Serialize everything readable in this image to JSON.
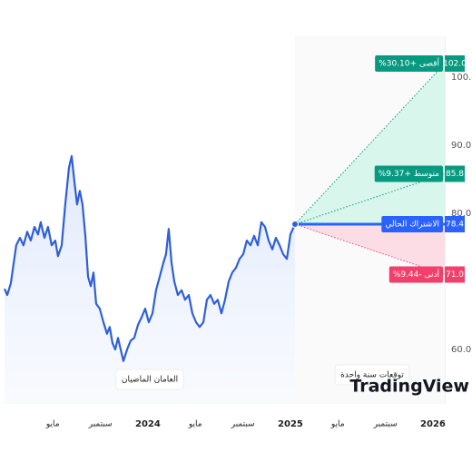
{
  "chart_data": {
    "type": "line",
    "x": [
      2022.994,
      2023.013,
      2023.038,
      2023.076,
      2023.102,
      2023.127,
      2023.153,
      2023.178,
      2023.204,
      2023.229,
      2023.248,
      2023.274,
      2023.299,
      2023.325,
      2023.35,
      2023.369,
      2023.395,
      2023.42,
      2023.446,
      2023.465,
      2023.484,
      2023.503,
      2023.522,
      2023.541,
      2023.561,
      2023.58,
      2023.599,
      2023.618,
      2023.637,
      2023.662,
      2023.688,
      2023.713,
      2023.732,
      2023.752,
      2023.771,
      2023.79,
      2023.809,
      2023.828,
      2023.854,
      2023.879,
      2023.904,
      2023.93,
      2023.955,
      2023.981,
      2024.006,
      2024.032,
      2024.057,
      2024.083,
      2024.108,
      2024.127,
      2024.146,
      2024.166,
      2024.185,
      2024.21,
      2024.236,
      2024.261,
      2024.287,
      2024.312,
      2024.338,
      2024.363,
      2024.389,
      2024.414,
      2024.439,
      2024.465,
      2024.49,
      2024.516,
      2024.541,
      2024.567,
      2024.592,
      2024.618,
      2024.643,
      2024.669,
      2024.694,
      2024.72,
      2024.745,
      2024.771,
      2024.796,
      2024.822,
      2024.847,
      2024.873,
      2024.898,
      2024.924,
      2024.949,
      2024.975,
      2025.0,
      2025.032
    ],
    "values": [
      68.9,
      68.0,
      69.7,
      75.3,
      76.4,
      75.3,
      77.3,
      76.0,
      78.0,
      76.9,
      78.7,
      76.4,
      78.0,
      75.3,
      76.0,
      73.7,
      75.3,
      81.3,
      86.7,
      88.4,
      84.7,
      81.3,
      83.3,
      81.3,
      76.7,
      70.7,
      69.3,
      71.3,
      66.7,
      66.0,
      64.0,
      62.3,
      63.3,
      60.9,
      60.0,
      61.7,
      60.0,
      58.3,
      60.0,
      61.3,
      61.7,
      63.6,
      64.7,
      66.0,
      64.0,
      65.3,
      68.7,
      70.7,
      72.7,
      74.0,
      77.7,
      72.7,
      70.0,
      68.0,
      68.7,
      67.3,
      68.0,
      65.3,
      64.0,
      63.3,
      64.0,
      67.3,
      68.0,
      66.7,
      67.3,
      65.3,
      67.3,
      70.0,
      71.3,
      72.0,
      73.3,
      74.0,
      76.0,
      75.3,
      76.7,
      75.3,
      78.7,
      78.0,
      76.0,
      74.7,
      76.4,
      75.3,
      74.0,
      73.3,
      76.9,
      78.4
    ],
    "color": "#2f5fd8",
    "xlim": [
      2022.994,
      2026.083
    ],
    "xticks": [
      {
        "value": 2023.333,
        "label": "مايو"
      },
      {
        "value": 2023.667,
        "label": "سبتمبر"
      },
      2024,
      {
        "value": 2024.333,
        "label": "مايو"
      },
      {
        "value": 2024.667,
        "label": "سبتمبر"
      },
      2025,
      {
        "value": 2025.333,
        "label": "مايو"
      },
      {
        "value": 2025.667,
        "label": "سبتمبر"
      },
      2026
    ],
    "ylim": [
      52,
      106
    ],
    "yticks": [
      {
        "value": 60,
        "label": "60.0"
      },
      {
        "value": 80,
        "label": "80.0"
      },
      {
        "value": 90,
        "label": "90.0"
      },
      {
        "value": 100,
        "label": "100.0"
      }
    ],
    "grid": false,
    "forecast": [
      {
        "name": "أقصى +30.10%",
        "value": 102.0,
        "value_label": "102.0",
        "color": "#089981",
        "dashed": true
      },
      {
        "name": "متوسط +9.37%",
        "value": 85.8,
        "value_label": "85.8",
        "color": "#089981",
        "dashed": true
      },
      {
        "name": "الاشتراك الحالي",
        "value": 78.4,
        "value_label": "78.4",
        "color": "#2962ff",
        "dashed": false
      },
      {
        "name": "أدنى -9.44%",
        "value": 71.0,
        "value_label": "71.0",
        "color": "#f23f6b",
        "dashed": true
      }
    ],
    "annotations": [
      "العامان الماضيان",
      "توقعات سنة واحدة"
    ],
    "logo": "TradingView"
  }
}
